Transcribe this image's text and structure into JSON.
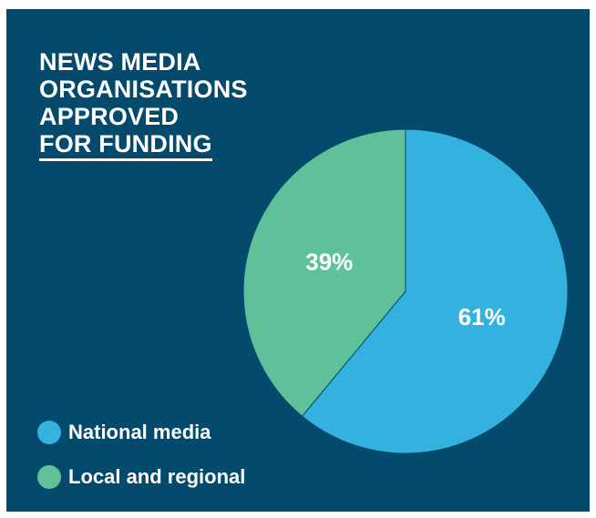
{
  "chart_data": {
    "type": "pie",
    "title_lines": [
      "NEWS MEDIA",
      "ORGANISATIONS",
      "APPROVED",
      "FOR FUNDING"
    ],
    "slices": [
      {
        "name": "National media",
        "value": 61,
        "label": "61%",
        "color": "#33b2e0"
      },
      {
        "name": "Local and regional",
        "value": 39,
        "label": "39%",
        "color": "#5ec19a"
      }
    ],
    "legend_placement": "bottom-left",
    "background_color": "#034a6c"
  }
}
